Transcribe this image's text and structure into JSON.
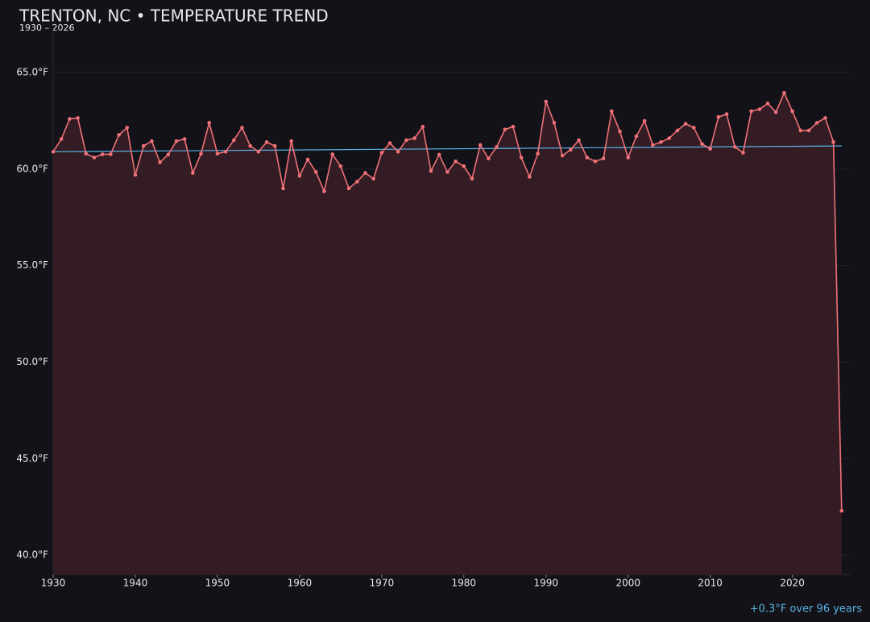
{
  "chart_data": {
    "type": "line",
    "title": "TRENTON, NC • TEMPERATURE TREND",
    "subtitle": "1930 – 2026",
    "x": [
      1930,
      1931,
      1932,
      1933,
      1934,
      1935,
      1936,
      1937,
      1938,
      1939,
      1940,
      1941,
      1942,
      1943,
      1944,
      1945,
      1946,
      1947,
      1948,
      1949,
      1950,
      1951,
      1952,
      1953,
      1954,
      1955,
      1956,
      1957,
      1958,
      1959,
      1960,
      1961,
      1962,
      1963,
      1964,
      1965,
      1966,
      1967,
      1968,
      1969,
      1970,
      1971,
      1972,
      1973,
      1974,
      1975,
      1976,
      1977,
      1978,
      1979,
      1980,
      1981,
      1982,
      1983,
      1984,
      1985,
      1986,
      1987,
      1988,
      1989,
      1990,
      1991,
      1992,
      1993,
      1994,
      1995,
      1996,
      1997,
      1998,
      1999,
      2000,
      2001,
      2002,
      2003,
      2004,
      2005,
      2006,
      2007,
      2008,
      2009,
      2010,
      2011,
      2012,
      2013,
      2014,
      2015,
      2016,
      2017,
      2018,
      2019,
      2020,
      2021,
      2022,
      2023,
      2024,
      2025,
      2026
    ],
    "values": [
      60.9,
      61.56,
      62.6,
      62.65,
      60.8,
      60.6,
      60.77,
      60.77,
      61.77,
      62.15,
      59.7,
      61.2,
      61.45,
      60.35,
      60.75,
      61.45,
      61.56,
      59.8,
      60.8,
      62.4,
      60.8,
      60.9,
      61.5,
      62.15,
      61.2,
      60.9,
      61.4,
      61.2,
      59.0,
      61.45,
      59.65,
      60.5,
      59.85,
      58.85,
      60.77,
      60.15,
      59.0,
      59.35,
      59.8,
      59.5,
      60.85,
      61.35,
      60.9,
      61.5,
      61.6,
      62.2,
      59.9,
      60.75,
      59.85,
      60.4,
      60.15,
      59.5,
      61.25,
      60.55,
      61.15,
      62.05,
      62.2,
      60.6,
      59.6,
      60.8,
      63.5,
      62.4,
      60.7,
      61.0,
      61.5,
      60.6,
      60.4,
      60.55,
      63.0,
      61.95,
      60.6,
      61.7,
      62.5,
      61.25,
      61.4,
      61.6,
      62.0,
      62.35,
      62.15,
      61.3,
      61.05,
      62.7,
      62.85,
      61.15,
      60.85,
      63.0,
      63.1,
      63.4,
      62.95,
      63.95,
      63.0,
      62.0,
      62.0,
      62.4,
      62.65,
      61.4,
      42.3
    ],
    "color": "#f07178",
    "fill_color": "#3a1f26",
    "trend": {
      "x": [
        1930,
        2026
      ],
      "values": [
        60.9,
        61.2
      ],
      "color": "#5ab4e6"
    },
    "annotation": "+0.3°F over 96 years",
    "xlim": [
      1930,
      2027
    ],
    "ylim": [
      39,
      67.3
    ],
    "xticks": [
      1930,
      1940,
      1950,
      1960,
      1970,
      1980,
      1990,
      2000,
      2010,
      2020
    ],
    "yticks": [
      {
        "value": 40,
        "label": "40.0°F"
      },
      {
        "value": 45,
        "label": "45.0°F"
      },
      {
        "value": 50,
        "label": "50.0°F"
      },
      {
        "value": 55,
        "label": "55.0°F"
      },
      {
        "value": 60,
        "label": "60.0°F"
      },
      {
        "value": 65,
        "label": "65.0°F"
      }
    ],
    "grid": true
  }
}
